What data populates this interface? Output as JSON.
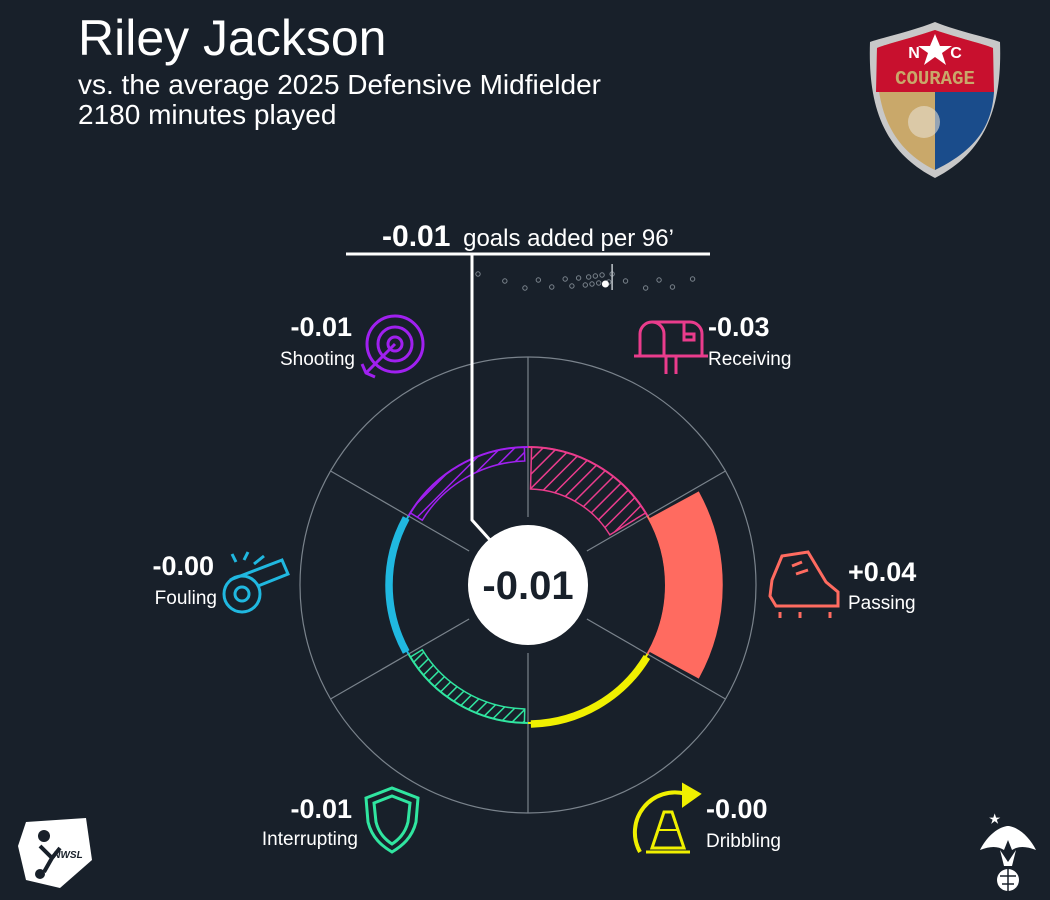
{
  "header": {
    "player_name": "Riley Jackson",
    "comparison": "vs. the average 2025 Defensive Midfielder",
    "minutes": "2180 minutes played"
  },
  "headline": {
    "value": "-0.01",
    "label": "goals added per 96’"
  },
  "center_value": "-0.01",
  "logos": {
    "club_top": "N",
    "club_top2": "C",
    "club_name": "COURAGE",
    "league": "NWSL"
  },
  "colors": {
    "background": "#18202a",
    "shooting": "#a020f0",
    "receiving": "#ea3c8c",
    "passing": "#ff6b60",
    "dribbling": "#f0f000",
    "interrupting": "#30e5a0",
    "fouling": "#20b8e0"
  },
  "chart_data": {
    "type": "radial-bar",
    "title": "-0.01 goals added per 96’",
    "center_total": -0.01,
    "baseline": 0,
    "categories": [
      "Receiving",
      "Passing",
      "Dribbling",
      "Interrupting",
      "Fouling",
      "Shooting"
    ],
    "series": [
      {
        "values": [
          -0.03,
          0.04,
          -0.0,
          -0.01,
          -0.0,
          -0.01
        ],
        "labels": [
          "-0.03",
          "+0.04",
          "-0.00",
          "-0.01",
          "-0.00",
          "-0.01"
        ]
      }
    ],
    "icons": [
      "mailbox-icon",
      "cleat-icon",
      "cone-arrow-icon",
      "shield-icon",
      "whistle-icon",
      "target-icon"
    ],
    "distribution_strip": {
      "description_points": [
        -0.2,
        -0.16,
        -0.13,
        -0.11,
        -0.09,
        -0.07,
        -0.06,
        -0.05,
        -0.04,
        -0.035,
        -0.03,
        -0.025,
        -0.02,
        -0.015,
        -0.005,
        0.0,
        0.02,
        0.05,
        0.07,
        0.09,
        0.12
      ],
      "player_value": -0.01,
      "average_marker": 0.0
    },
    "grid": true
  }
}
